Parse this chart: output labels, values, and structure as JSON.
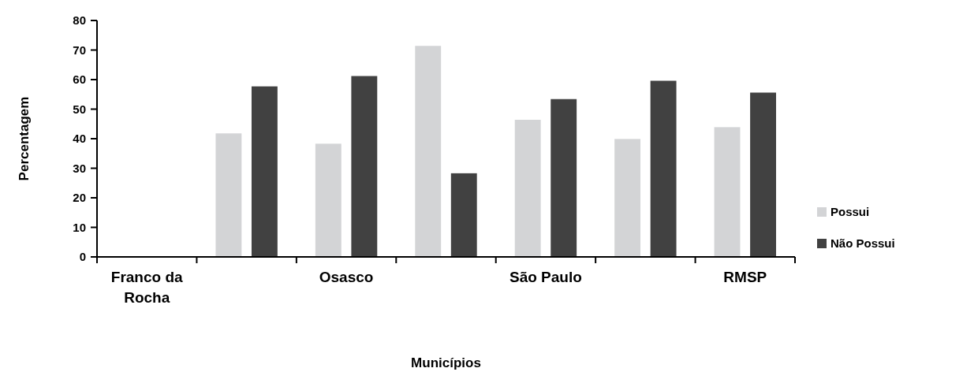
{
  "chart_data": {
    "type": "bar",
    "xlabel": "Municípios",
    "ylabel": "Percentagem",
    "categories": [
      "Franco da Rocha",
      null,
      "Osasco",
      null,
      "São Paulo",
      null,
      "RMSP"
    ],
    "series": [
      {
        "name": "Possui",
        "color": "#d3d4d6",
        "values": [
          null,
          41.8,
          38.3,
          71.4,
          46.4,
          39.9,
          43.9
        ]
      },
      {
        "name": "Não Possui",
        "color": "#414141",
        "values": [
          null,
          57.7,
          61.2,
          28.3,
          53.4,
          59.6,
          55.6
        ]
      }
    ],
    "ylim": [
      0,
      80
    ],
    "yticks": [
      0,
      10,
      20,
      30,
      40,
      50,
      60,
      70,
      80
    ],
    "grid": false,
    "legend": "right"
  }
}
